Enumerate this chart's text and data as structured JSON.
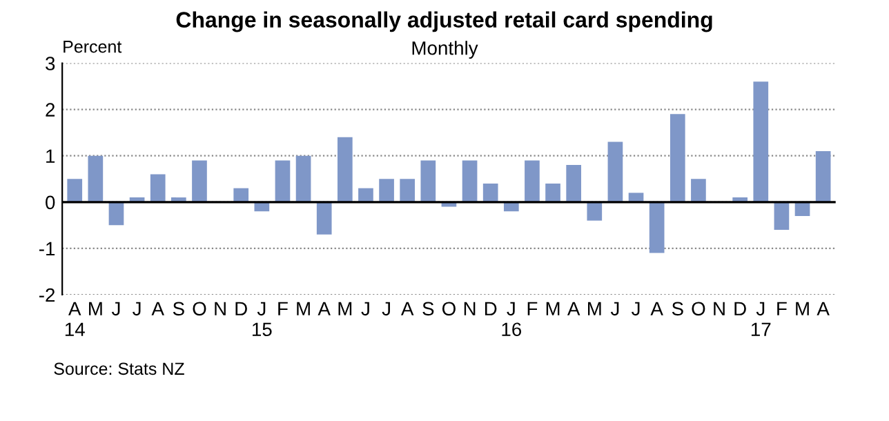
{
  "chart_data": {
    "type": "bar",
    "title": "Change in seasonally adjusted retail card spending",
    "subtitle": "Monthly",
    "ylabel": "Percent",
    "categories": [
      "A\n14",
      "M",
      "J",
      "J",
      "A",
      "S",
      "O",
      "N",
      "D",
      "J\n15",
      "F",
      "M",
      "A",
      "M",
      "J",
      "J",
      "A",
      "S",
      "O",
      "N",
      "D",
      "J\n16",
      "F",
      "M",
      "A",
      "M",
      "J",
      "J",
      "A",
      "S",
      "O",
      "N",
      "D",
      "J\n17",
      "F",
      "M",
      "A"
    ],
    "values": [
      0.5,
      1.0,
      -0.5,
      0.1,
      0.6,
      0.1,
      0.9,
      0,
      0.3,
      -0.2,
      0.9,
      1.0,
      -0.7,
      1.4,
      0.3,
      0.5,
      0.5,
      0.9,
      -0.1,
      0.9,
      0.4,
      -0.2,
      0.9,
      0.4,
      0.8,
      -0.4,
      1.3,
      0.2,
      -1.1,
      1.9,
      0.5,
      0,
      0.1,
      2.6,
      -0.6,
      -0.3,
      1.1
    ],
    "color": "#7f97c8",
    "ylim": [
      -2,
      3
    ],
    "yticks": [
      -2,
      -1,
      0,
      1,
      2,
      3
    ],
    "grid": "y",
    "annotations": [
      "Source: Stats NZ"
    ]
  }
}
